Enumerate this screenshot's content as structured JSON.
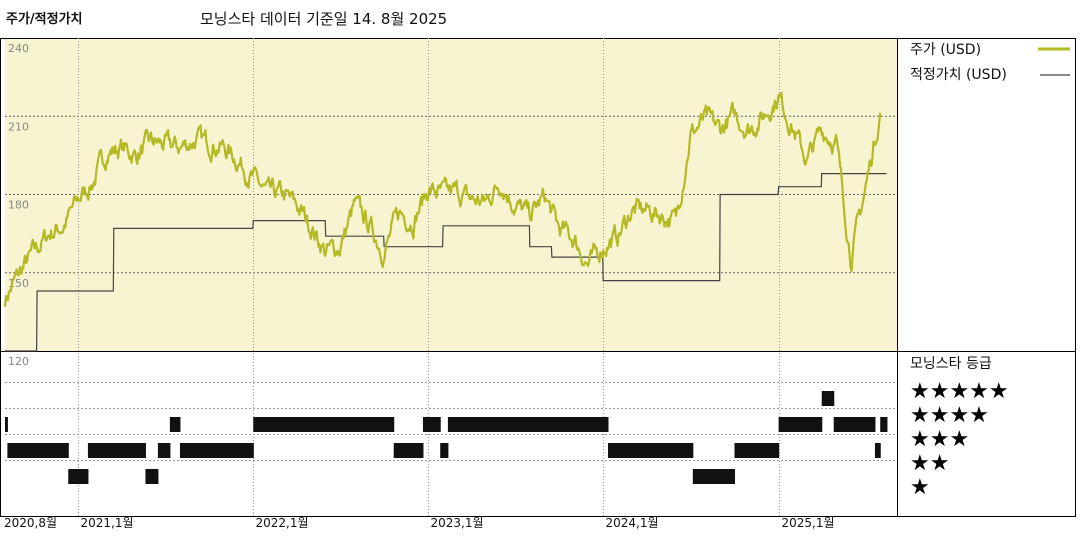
{
  "header": {
    "title": "주가/적정가치",
    "subtitle": "모닝스타 데이터 기준일 14. 8월 2025"
  },
  "colors": {
    "price": "#b5b924",
    "fair": "#444444",
    "panel_bg": "#f8f4d2",
    "rating_bar": "#111111"
  },
  "chart_data": {
    "type": "line",
    "ylim": [
      120,
      240
    ],
    "yticks": [
      "240",
      "210",
      "180",
      "150",
      "120"
    ],
    "xlim": [
      "2020-08-01",
      "2025-09-05"
    ],
    "xticks": [
      {
        "date": "2020-08-01",
        "label": "2020,8월"
      },
      {
        "date": "2021-01-01",
        "label": "2021,1월"
      },
      {
        "date": "2022-01-01",
        "label": "2022,1월"
      },
      {
        "date": "2023-01-01",
        "label": "2023,1월"
      },
      {
        "date": "2024-01-01",
        "label": "2024,1월"
      },
      {
        "date": "2025-01-01",
        "label": "2025,1월"
      }
    ],
    "legend_position": "right",
    "series": [
      {
        "name": "주가 (USD)",
        "x": [
          "2020-08-01",
          "2020-09-01",
          "2020-10-01",
          "2020-11-01",
          "2020-12-01",
          "2021-01-01",
          "2021-02-01",
          "2021-03-01",
          "2021-04-01",
          "2021-05-01",
          "2021-06-01",
          "2021-07-01",
          "2021-08-01",
          "2021-09-01",
          "2021-10-01",
          "2021-11-01",
          "2021-12-01",
          "2022-01-01",
          "2022-02-01",
          "2022-03-01",
          "2022-04-01",
          "2022-05-01",
          "2022-06-01",
          "2022-07-01",
          "2022-08-01",
          "2022-09-01",
          "2022-10-01",
          "2022-11-01",
          "2022-12-01",
          "2023-01-01",
          "2023-02-01",
          "2023-03-01",
          "2023-04-01",
          "2023-05-01",
          "2023-06-01",
          "2023-07-01",
          "2023-08-01",
          "2023-09-01",
          "2023-10-01",
          "2023-11-01",
          "2023-12-01",
          "2024-01-01",
          "2024-02-01",
          "2024-03-01",
          "2024-04-01",
          "2024-05-01",
          "2024-06-01",
          "2024-07-01",
          "2024-08-01",
          "2024-09-01",
          "2024-10-01",
          "2024-11-01",
          "2024-12-01",
          "2025-01-01",
          "2025-02-01",
          "2025-03-01",
          "2025-04-01",
          "2025-05-01",
          "2025-06-01",
          "2025-07-01",
          "2025-08-01"
        ],
        "y": [
          140,
          150,
          158,
          165,
          168,
          178,
          185,
          196,
          198,
          195,
          200,
          199,
          198,
          201,
          200,
          198,
          193,
          186,
          180,
          180,
          176,
          168,
          158,
          160,
          176,
          168,
          158,
          173,
          170,
          182,
          180,
          181,
          178,
          177,
          185,
          176,
          172,
          179,
          167,
          163,
          153,
          160,
          164,
          174,
          174,
          172,
          170,
          203,
          209,
          205,
          210,
          205,
          210,
          218,
          205,
          193,
          205,
          200,
          156,
          182,
          212
        ]
      },
      {
        "name": "적정가치 (USD)",
        "x": [
          "2020-08-01",
          "2020-10-06",
          "2020-10-07",
          "2021-03-15",
          "2021-03-16",
          "2021-12-31",
          "2022-01-01",
          "2022-05-31",
          "2022-06-01",
          "2022-09-30",
          "2022-10-01",
          "2023-01-31",
          "2023-02-01",
          "2023-07-31",
          "2023-08-01",
          "2023-09-15",
          "2023-09-16",
          "2023-12-31",
          "2024-01-01",
          "2024-08-31",
          "2024-09-01",
          "2024-12-31",
          "2025-01-01",
          "2025-03-31",
          "2025-04-01",
          "2025-08-14"
        ],
        "y": [
          120,
          120,
          143,
          143,
          167,
          167,
          170,
          170,
          164,
          164,
          160,
          160,
          168,
          168,
          160,
          160,
          156,
          156,
          147,
          147,
          180,
          180,
          183,
          183,
          188,
          188
        ]
      }
    ],
    "ratings": {
      "title": "모닝스타 등급",
      "levels": [
        "★★★★★",
        "★★★★",
        "★★★",
        "★★",
        "★"
      ],
      "periods": [
        {
          "start": "2020-08-01",
          "end": "2020-08-05",
          "stars": 3
        },
        {
          "start": "2020-08-06",
          "end": "2020-12-10",
          "stars": 2
        },
        {
          "start": "2020-12-11",
          "end": "2021-01-20",
          "stars": 1
        },
        {
          "start": "2021-01-21",
          "end": "2021-05-20",
          "stars": 2
        },
        {
          "start": "2021-05-21",
          "end": "2021-06-15",
          "stars": 1
        },
        {
          "start": "2021-06-16",
          "end": "2021-07-10",
          "stars": 2
        },
        {
          "start": "2021-07-11",
          "end": "2021-07-31",
          "stars": 3
        },
        {
          "start": "2021-08-01",
          "end": "2021-12-31",
          "stars": 2
        },
        {
          "start": "2022-01-01",
          "end": "2022-10-20",
          "stars": 3
        },
        {
          "start": "2022-10-21",
          "end": "2022-12-20",
          "stars": 2
        },
        {
          "start": "2022-12-21",
          "end": "2023-01-25",
          "stars": 3
        },
        {
          "start": "2023-01-26",
          "end": "2023-02-10",
          "stars": 2
        },
        {
          "start": "2023-02-11",
          "end": "2024-01-10",
          "stars": 3
        },
        {
          "start": "2024-01-11",
          "end": "2024-07-05",
          "stars": 2
        },
        {
          "start": "2024-07-06",
          "end": "2024-09-30",
          "stars": 1
        },
        {
          "start": "2024-10-01",
          "end": "2024-12-31",
          "stars": 2
        },
        {
          "start": "2025-01-01",
          "end": "2025-03-31",
          "stars": 3
        },
        {
          "start": "2025-04-01",
          "end": "2025-04-25",
          "stars": 4
        },
        {
          "start": "2025-04-26",
          "end": "2025-07-20",
          "stars": 3
        },
        {
          "start": "2025-07-21",
          "end": "2025-07-31",
          "stars": 2
        },
        {
          "start": "2025-08-01",
          "end": "2025-08-14",
          "stars": 3
        }
      ]
    }
  }
}
